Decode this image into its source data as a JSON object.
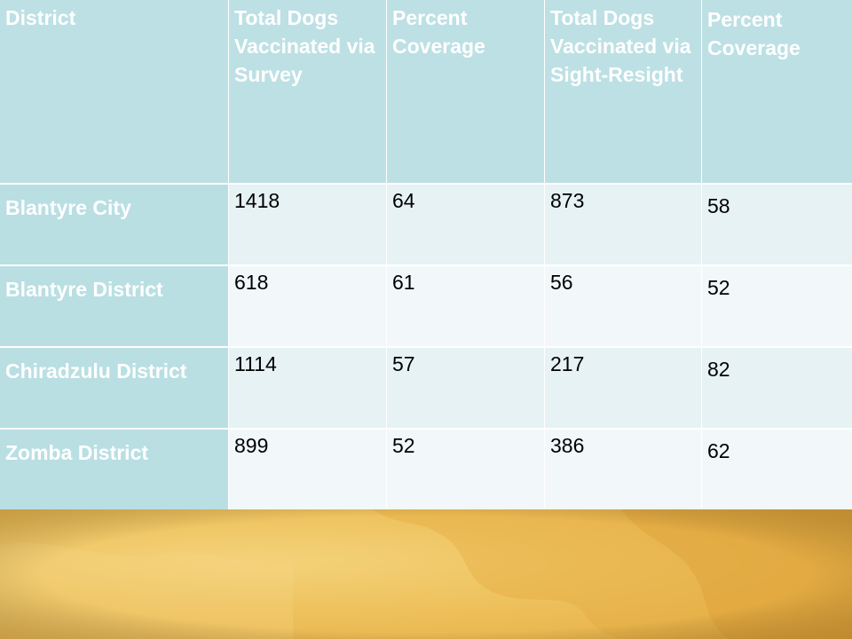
{
  "table": {
    "headers": [
      "District",
      "Total Dogs Vaccinated via Survey",
      "Percent Coverage",
      "Total Dogs Vaccinated via Sight-Resight",
      "Percent Coverage"
    ],
    "rows": [
      {
        "district": "Blantyre City",
        "survey_total": "1418",
        "survey_pct": "64",
        "sight_total": "873",
        "sight_pct": "58"
      },
      {
        "district": "Blantyre District",
        "survey_total": "618",
        "survey_pct": "61",
        "sight_total": "56",
        "sight_pct": "52"
      },
      {
        "district": "Chiradzulu District",
        "survey_total": "1114",
        "survey_pct": "57",
        "sight_total": "217",
        "sight_pct": "82"
      },
      {
        "district": "Zomba District",
        "survey_total": "899",
        "survey_pct": "52",
        "sight_total": "386",
        "sight_pct": "62"
      }
    ]
  },
  "colors": {
    "header_fill": "#bde0e4",
    "district_fill": "#b9dfe3",
    "band_a": "#e6f2f4",
    "band_b": "#f2f8fa",
    "decor_gold": "#eec25e"
  }
}
